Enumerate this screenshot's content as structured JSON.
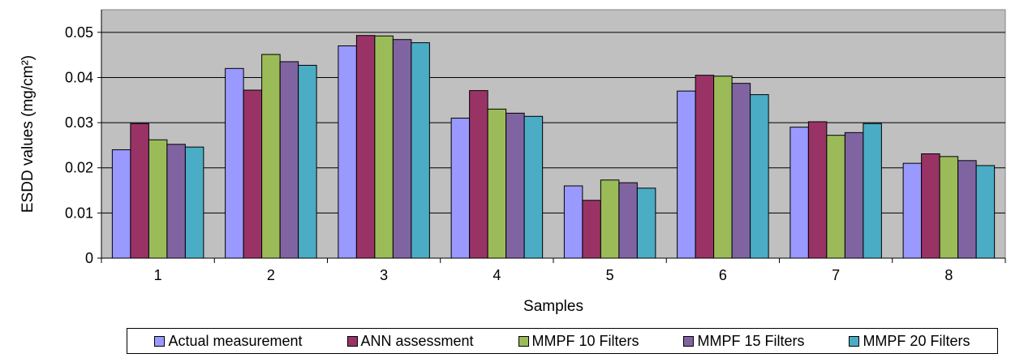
{
  "chart_data": {
    "type": "bar",
    "title": "",
    "xlabel": "Samples",
    "ylabel": "ESDD values (mg/cm²)",
    "categories": [
      "1",
      "2",
      "3",
      "4",
      "5",
      "6",
      "7",
      "8"
    ],
    "ylim": [
      0,
      0.055
    ],
    "yticks": [
      0,
      0.01,
      0.02,
      0.03,
      0.04,
      0.05
    ],
    "ytick_labels": [
      "0",
      "0.01",
      "0.02",
      "0.03",
      "0.04",
      "0.05"
    ],
    "grid": true,
    "plot_background": "#c0c0c0",
    "legend_position": "bottom",
    "series": [
      {
        "name": "Actual measurement",
        "color": "#9999ff",
        "values": [
          0.024,
          0.042,
          0.047,
          0.031,
          0.016,
          0.037,
          0.029,
          0.021
        ]
      },
      {
        "name": "ANN assessment",
        "color": "#993366",
        "values": [
          0.0298,
          0.0372,
          0.0493,
          0.0371,
          0.0128,
          0.0405,
          0.0302,
          0.0231
        ]
      },
      {
        "name": "MMPF 10 Filters",
        "color": "#9bbb59",
        "values": [
          0.0262,
          0.0451,
          0.0492,
          0.033,
          0.0173,
          0.0403,
          0.0272,
          0.0225
        ]
      },
      {
        "name": "MMPF 15 Filters",
        "color": "#8064a2",
        "values": [
          0.0252,
          0.0435,
          0.0484,
          0.0321,
          0.0167,
          0.0387,
          0.0278,
          0.0216
        ]
      },
      {
        "name": "MMPF 20 Filters",
        "color": "#4bacc6",
        "values": [
          0.0246,
          0.0427,
          0.0477,
          0.0314,
          0.0155,
          0.0362,
          0.0298,
          0.0205
        ]
      }
    ]
  }
}
